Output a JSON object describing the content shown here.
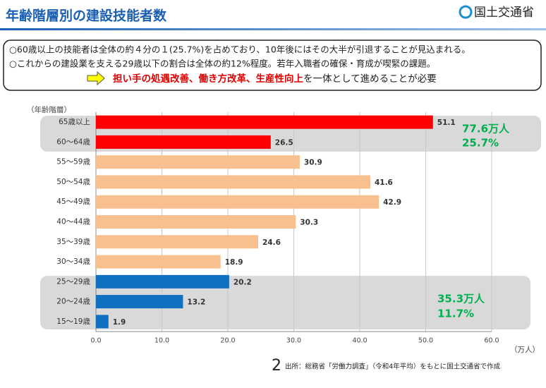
{
  "header": {
    "title": "年齢階層別の建設技能者数",
    "logo": "国土交通省"
  },
  "notes": [
    "○60歳以上の技能者は全体の約４分の１(25.7%)を占めており、10年後にはその大半が引退することが見込まれる。",
    "○これからの建設業を支える29歳以下の割合は全体の約12%程度。若年入職者の確保・育成が喫緊の課題。"
  ],
  "conclusion": {
    "emphasis": "担い手の処遇改善、働き方改革、生産性向上",
    "rest": "を一体として進めることが必要"
  },
  "chart_data": {
    "type": "bar",
    "orientation": "horizontal",
    "y_label": "（年齢階層）",
    "x_label": "（万人）",
    "categories": [
      "65歳以上",
      "60～64歳",
      "55～59歳",
      "50～54歳",
      "45～49歳",
      "40～44歳",
      "35～39歳",
      "30～34歳",
      "25～29歳",
      "20～24歳",
      "15～19歳"
    ],
    "values": [
      51.1,
      26.5,
      30.9,
      41.6,
      42.9,
      30.3,
      24.6,
      18.9,
      20.2,
      13.2,
      1.9
    ],
    "colors": [
      "#ff0000",
      "#ff0000",
      "#f8c08e",
      "#f8c08e",
      "#f8c08e",
      "#f8c08e",
      "#f8c08e",
      "#f8c08e",
      "#0f6fc0",
      "#0f6fc0",
      "#0f6fc0"
    ],
    "xlim": [
      0,
      60
    ],
    "xticks": [
      {
        "value": 0,
        "label": "0.0"
      },
      {
        "value": 10,
        "label": "10.0"
      },
      {
        "value": 20,
        "label": "20.0"
      },
      {
        "value": 30,
        "label": "30.0"
      },
      {
        "value": 40,
        "label": "40.0"
      },
      {
        "value": 50,
        "label": "50.0"
      },
      {
        "value": 60,
        "label": "60.0"
      }
    ],
    "grid": true,
    "annotations": [
      "77.6万人",
      "25.7%",
      "35.3万人",
      "11.7%"
    ]
  },
  "footer": {
    "page": "2",
    "source": "出所：総務省「労働力調査」（令和4年平均）をもとに国土交通省で作成"
  }
}
